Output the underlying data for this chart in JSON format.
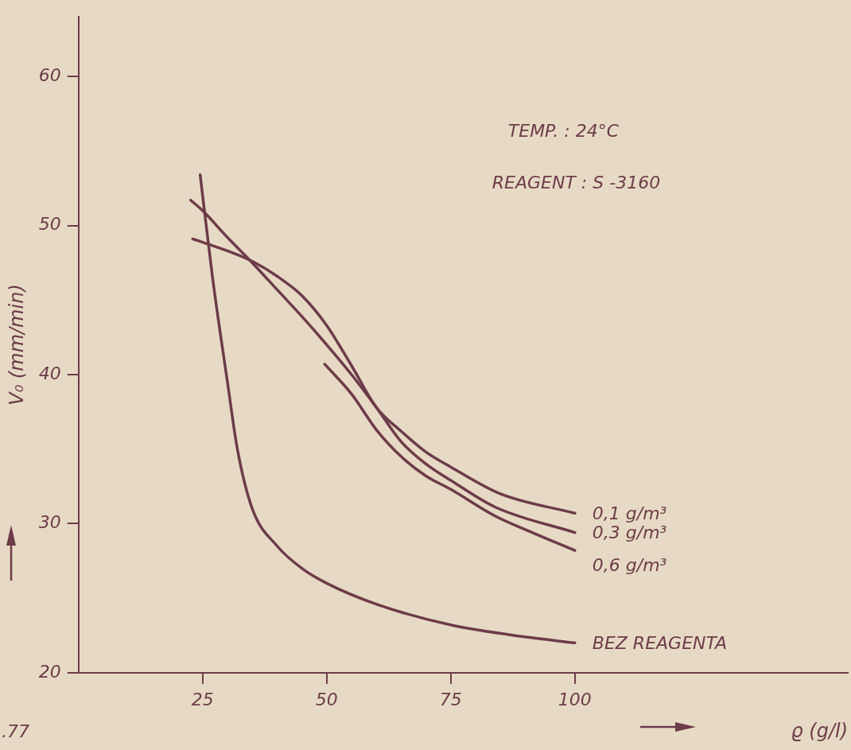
{
  "chart_data": {
    "type": "line",
    "xlabel": "ϱ (g/l)",
    "ylabel": "V₀ (mm/min)",
    "xlim": [
      0,
      155
    ],
    "xticks": [
      25,
      50,
      75,
      100
    ],
    "ylim": [
      20,
      64
    ],
    "yticks": [
      20,
      30,
      40,
      50,
      60
    ],
    "grid": false,
    "legend": false,
    "marker": "none",
    "line_style": "solid",
    "annotations": [
      "TEMP. : 24°C",
      "REAGENT : S -3160",
      ".77"
    ],
    "series": [
      {
        "name": "0,1 g/m³",
        "color": "#6e3b4b",
        "x": [
          23,
          30,
          35,
          40,
          45,
          50,
          55,
          60,
          65,
          70,
          75,
          85,
          100
        ],
        "values": [
          49.1,
          48.3,
          47.6,
          46.6,
          45.3,
          43.3,
          40.6,
          37.8,
          36.2,
          34.8,
          33.8,
          32.0,
          30.7
        ]
      },
      {
        "name": "0,3 g/m³",
        "color": "#6e3b4b",
        "x": [
          22.6,
          25,
          30,
          35,
          40,
          45,
          50,
          55,
          60,
          65,
          70,
          75,
          84,
          100
        ],
        "values": [
          51.7,
          51,
          49.2,
          47.5,
          45.7,
          43.9,
          42,
          40,
          37.8,
          35.5,
          34,
          32.9,
          31.1,
          29.4
        ]
      },
      {
        "name": "0,6 g/m³",
        "color": "#6e3b4b",
        "x": [
          49.6,
          55,
          60,
          65,
          70,
          75,
          84,
          90,
          100
        ],
        "values": [
          40.7,
          38.7,
          36.3,
          34.5,
          33.2,
          32.3,
          30.5,
          29.6,
          28.2
        ]
      },
      {
        "name": "BEZ REAGENTA",
        "color": "#6e3b4b",
        "x": [
          24.5,
          27,
          30,
          32,
          35,
          40,
          45,
          50,
          60,
          75,
          90,
          100
        ],
        "values": [
          53.4,
          46.5,
          39.5,
          35,
          31,
          28.5,
          27,
          26,
          24.6,
          23.2,
          22.4,
          22
        ]
      }
    ]
  }
}
